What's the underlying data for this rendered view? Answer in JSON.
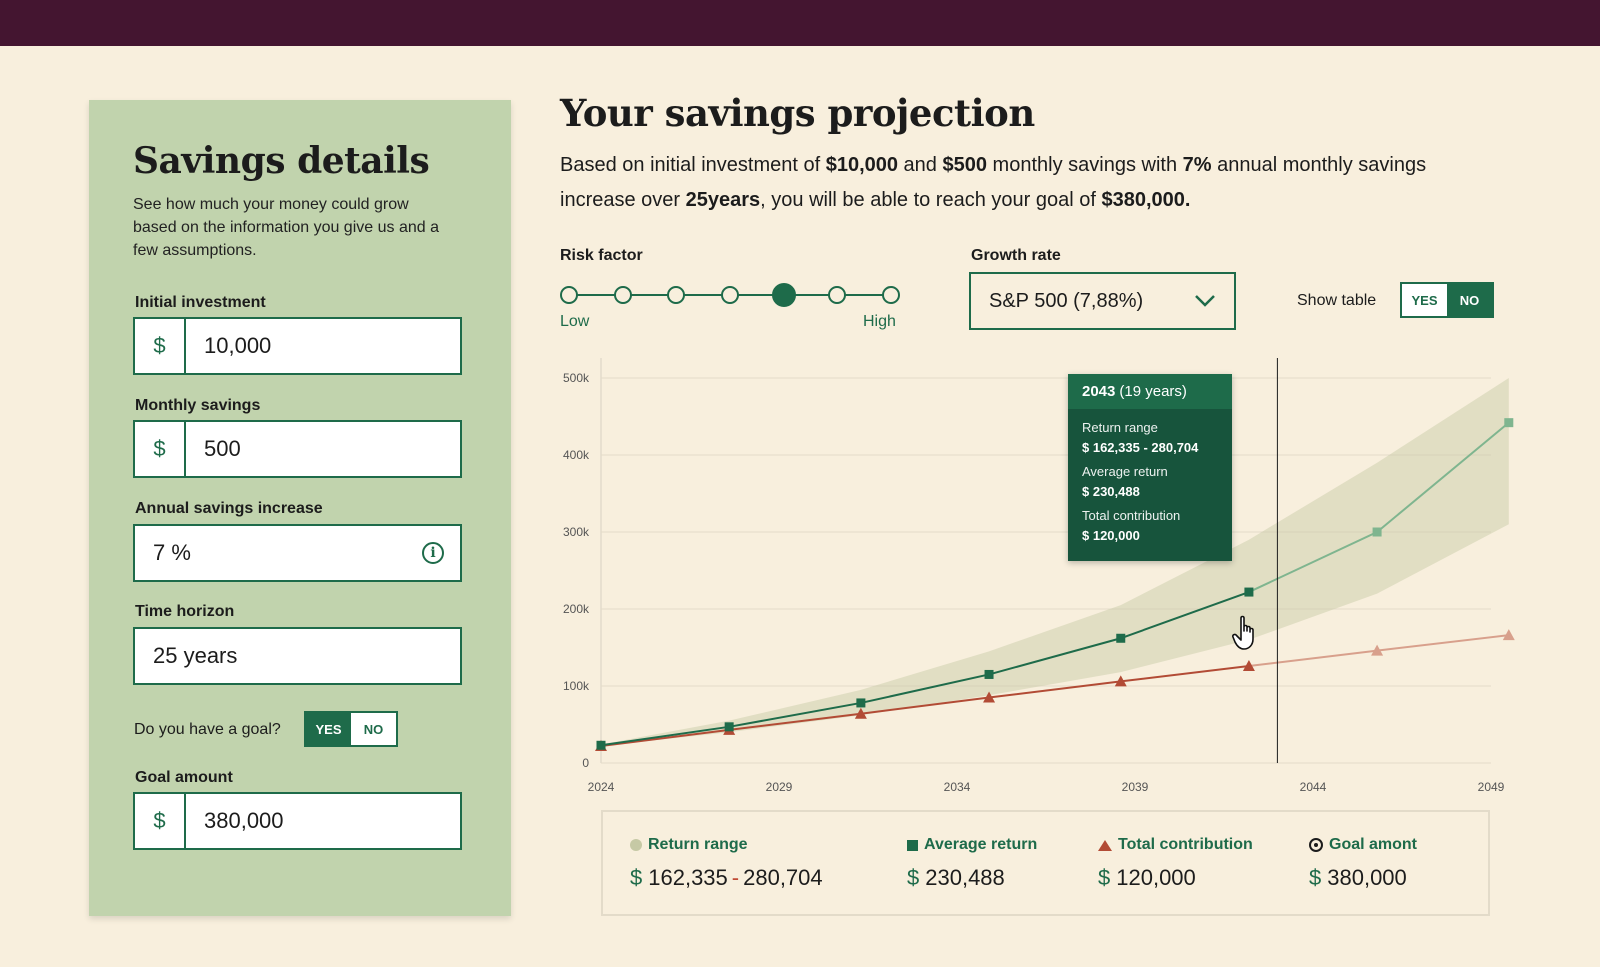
{
  "panel": {
    "title": "Savings details",
    "intro": "See how much your money could grow based on the information you give us and a few assumptions.",
    "initial_investment": {
      "label": "Initial investment",
      "currency": "$",
      "value": "10,000"
    },
    "monthly_savings": {
      "label": "Monthly savings",
      "currency": "$",
      "value": "500"
    },
    "annual_increase": {
      "label": "Annual savings increase",
      "value": "7 %",
      "info_icon": "info-icon"
    },
    "time_horizon": {
      "label": "Time horizon",
      "value": "25 years"
    },
    "goal_question": "Do you have a goal?",
    "goal_toggle": {
      "yes": "YES",
      "no": "NO",
      "selected": "YES"
    },
    "goal_amount": {
      "label": "Goal amount",
      "currency": "$",
      "value": "380,000"
    }
  },
  "projection": {
    "title": "Your savings projection",
    "summary": {
      "p1": "Based on initial investment of ",
      "initial": "$10,000",
      "p2": " and ",
      "monthly": "$500",
      "p3": " monthly savings with ",
      "rate": "7%",
      "p4": " annual monthly savings increase over ",
      "years": "25years",
      "p5": ", you will be able to reach your goal of ",
      "goal": "$380,000."
    },
    "risk": {
      "label": "Risk factor",
      "low": "Low",
      "high": "High",
      "levels": 7,
      "selected_index": 4
    },
    "growth": {
      "label": "Growth rate",
      "selected": "S&P 500 (7,88%)"
    },
    "show_table": {
      "label": "Show table",
      "yes": "YES",
      "no": "NO",
      "selected": "NO"
    }
  },
  "tooltip": {
    "year": "2043",
    "years_note": "(19 years)",
    "return_range_label": "Return range",
    "return_range": "$ 162,335 - 280,704",
    "average_label": "Average return",
    "average": "$ 230,488",
    "contribution_label": "Total contribution",
    "contribution": "$ 120,000"
  },
  "legend": {
    "return_range": {
      "label": "Return range",
      "currency": "$",
      "low": "162,335",
      "sep": "-",
      "high": "280,704"
    },
    "average": {
      "label": "Average return",
      "currency": "$",
      "value": "230,488"
    },
    "contribution": {
      "label": "Total contribution",
      "currency": "$",
      "value": "120,000"
    },
    "goal": {
      "label": "Goal amont",
      "currency": "$",
      "value": "380,000"
    }
  },
  "colors": {
    "accent": "#1e6b4a",
    "contribution": "#b24b35",
    "band": "#c6c9a5",
    "topbar": "#441530",
    "panel": "#c1d3ad",
    "background": "#f8efdd"
  },
  "chart_data": {
    "type": "line",
    "x_ticks": [
      "2024",
      "2029",
      "2034",
      "2039",
      "2044",
      "2049"
    ],
    "y_ticks": [
      "0",
      "100k",
      "200k",
      "300k",
      "400k",
      "500k"
    ],
    "xlim": [
      2024,
      2049
    ],
    "ylim": [
      0,
      500000
    ],
    "highlight_year": 2043,
    "series": [
      {
        "name": "Average return",
        "marker": "square",
        "x": [
          2024,
          2027.6,
          2031.3,
          2034.9,
          2038.6,
          2042.2,
          2045.8,
          2049.5
        ],
        "y": [
          23000,
          47000,
          78000,
          115000,
          162000,
          222000,
          300000,
          442000
        ]
      },
      {
        "name": "Total contribution",
        "marker": "triangle",
        "x": [
          2024,
          2027.6,
          2031.3,
          2034.9,
          2038.6,
          2042.2,
          2045.8,
          2049.5
        ],
        "y": [
          22000,
          43000,
          64000,
          85000,
          106000,
          126000,
          146000,
          166000
        ]
      }
    ],
    "band": {
      "name": "Return range",
      "x": [
        2024,
        2027.6,
        2031.3,
        2034.9,
        2038.6,
        2042.2,
        2045.8,
        2049.5
      ],
      "low": [
        22000,
        40000,
        62000,
        88000,
        118000,
        160000,
        220000,
        310000
      ],
      "high": [
        24000,
        55000,
        95000,
        145000,
        205000,
        290000,
        390000,
        500000
      ]
    }
  }
}
